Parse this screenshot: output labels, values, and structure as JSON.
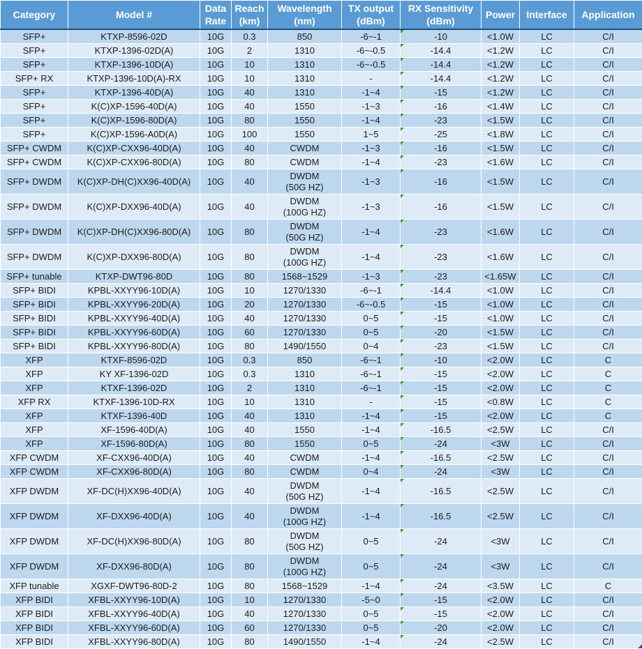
{
  "table": {
    "columns": [
      {
        "key": "category",
        "label": "Category",
        "width": 97
      },
      {
        "key": "model",
        "label": "Model #",
        "width": 189
      },
      {
        "key": "data-rate",
        "label": "Data Rate",
        "width": 45
      },
      {
        "key": "reach",
        "label": "Reach (km)",
        "width": 52
      },
      {
        "key": "wavelength",
        "label": "Wavelength (nm)",
        "width": 106
      },
      {
        "key": "tx-output",
        "label": "TX output (dBm)",
        "width": 84
      },
      {
        "key": "rx-sensitivity",
        "label": "RX Sensitivity (dBm)",
        "width": 116
      },
      {
        "key": "power",
        "label": "Power",
        "width": 55
      },
      {
        "key": "interface",
        "label": "Interface",
        "width": 78
      },
      {
        "key": "application",
        "label": "Application",
        "width": 98
      }
    ],
    "error_indicator_column_index": 6,
    "rows": [
      [
        "SFP+",
        "KTXP-8596-02D",
        "10G",
        "0.3",
        "850",
        "-6~-1",
        "-10",
        "<1.0W",
        "LC",
        "C/I"
      ],
      [
        "SFP+",
        "KTXP-1396-02D(A)",
        "10G",
        "2",
        "1310",
        "-6~-0.5",
        "-14.4",
        "<1.2W",
        "LC",
        "C/I"
      ],
      [
        "SFP+",
        "KTXP-1396-10D(A)",
        "10G",
        "10",
        "1310",
        "-6~-0.5",
        "-14.4",
        "<1.2W",
        "LC",
        "C/I"
      ],
      [
        "SFP+ RX",
        "KTXP-1396-10D(A)-RX",
        "10G",
        "10",
        "1310",
        "-",
        "-14.4",
        "<1.2W",
        "LC",
        "C/I"
      ],
      [
        "SFP+",
        "KTXP-1396-40D(A)",
        "10G",
        "40",
        "1310",
        "-1~4",
        "-15",
        "<1.2W",
        "LC",
        "C/I"
      ],
      [
        "SFP+",
        "K(C)XP-1596-40D(A)",
        "10G",
        "40",
        "1550",
        "-1~3",
        "-16",
        "<1.4W",
        "LC",
        "C/I"
      ],
      [
        "SFP+",
        "K(C)XP-1596-80D(A)",
        "10G",
        "80",
        "1550",
        "-1~4",
        "-23",
        "<1.5W",
        "LC",
        "C/I"
      ],
      [
        "SFP+",
        "K(C)XP-1596-A0D(A)",
        "10G",
        "100",
        "1550",
        "1~5",
        "-25",
        "<1.8W",
        "LC",
        "C/I"
      ],
      [
        "SFP+ CWDM",
        "K(C)XP-CXX96-40D(A)",
        "10G",
        "40",
        "CWDM",
        "-1~3",
        "-16",
        "<1.5W",
        "LC",
        "C/I"
      ],
      [
        "SFP+ CWDM",
        "K(C)XP-CXX96-80D(A)",
        "10G",
        "80",
        "CWDM",
        "-1~4",
        "-23",
        "<1.6W",
        "LC",
        "C/I"
      ],
      [
        "SFP+ DWDM",
        "K(C)XP-DH(C)XX96-40D(A)",
        "10G",
        "40",
        "DWDM\n(50G HZ)",
        "-1~3",
        "-16",
        "<1.5W",
        "LC",
        "C/I"
      ],
      [
        "SFP+ DWDM",
        "K(C)XP-DXX96-40D(A)",
        "10G",
        "40",
        "DWDM\n(100G HZ)",
        "-1~3",
        "-16",
        "<1.5W",
        "LC",
        "C/I"
      ],
      [
        "SFP+ DWDM",
        "K(C)XP-DH(C)XX96-80D(A)",
        "10G",
        "80",
        "DWDM\n(50G HZ)",
        "-1~4",
        "-23",
        "<1.6W",
        "LC",
        "C/I"
      ],
      [
        "SFP+ DWDM",
        "K(C)XP-DXX96-80D(A)",
        "10G",
        "80",
        "DWDM\n(100G HZ)",
        "-1~4",
        "-23",
        "<1.6W",
        "LC",
        "C/I"
      ],
      [
        "SFP+ tunable",
        "KTXP-DWT96-80D",
        "10G",
        "80",
        "1568~1529",
        "-1~3",
        "-23",
        "<1.65W",
        "LC",
        "C/I"
      ],
      [
        "SFP+ BIDI",
        "KPBL-XXYY96-10D(A)",
        "10G",
        "10",
        "1270/1330",
        "-6~-1",
        "-14.4",
        "<1.0W",
        "LC",
        "C/I"
      ],
      [
        "SFP+ BIDI",
        "KPBL-XXYY96-20D(A)",
        "10G",
        "20",
        "1270/1330",
        "-6~-0.5",
        "-15",
        "<1.0W",
        "LC",
        "C/I"
      ],
      [
        "SFP+ BIDI",
        "KPBL-XXYY96-40D(A)",
        "10G",
        "40",
        "1270/1330",
        "0~5",
        "-15",
        "<1.0W",
        "LC",
        "C/I"
      ],
      [
        "SFP+ BIDI",
        "KPBL-XXYY96-60D(A)",
        "10G",
        "60",
        "1270/1330",
        "0~5",
        "-20",
        "<1.5W",
        "LC",
        "C/I"
      ],
      [
        "SFP+ BIDI",
        "KPBL-XXYY96-80D(A)",
        "10G",
        "80",
        "1490/1550",
        "0~4",
        "-23",
        "<1.5W",
        "LC",
        "C/I"
      ],
      [
        "XFP",
        "KTXF-8596-02D",
        "10G",
        "0.3",
        "850",
        "-6~-1",
        "-10",
        "<2.0W",
        "LC",
        "C"
      ],
      [
        "XFP",
        "KY XF-1396-02D",
        "10G",
        "0.3",
        "1310",
        "-6~-1",
        "-15",
        "<2.0W",
        "LC",
        "C"
      ],
      [
        "XFP",
        "KTXF-1396-02D",
        "10G",
        "2",
        "1310",
        "-6~-1",
        "-15",
        "<2.0W",
        "LC",
        "C"
      ],
      [
        "XFP RX",
        "KTXF-1396-10D-RX",
        "10G",
        "10",
        "1310",
        "-",
        "-15",
        "<0.8W",
        "LC",
        "C"
      ],
      [
        "XFP",
        "KTXF-1396-40D",
        "10G",
        "40",
        "1310",
        "-1~4",
        "-15",
        "<2.0W",
        "LC",
        "C"
      ],
      [
        "XFP",
        "XF-1596-40D(A)",
        "10G",
        "40",
        "1550",
        "-1~4",
        "-16.5",
        "<2.5W",
        "LC",
        "C/I"
      ],
      [
        "XFP",
        "XF-1596-80D(A)",
        "10G",
        "80",
        "1550",
        "0~5",
        "-24",
        "<3W",
        "LC",
        "C/I"
      ],
      [
        "XFP CWDM",
        "XF-CXX96-40D(A)",
        "10G",
        "40",
        "CWDM",
        "-1~4",
        "-16.5",
        "<2.5W",
        "LC",
        "C/I"
      ],
      [
        "XFP CWDM",
        "XF-CXX96-80D(A)",
        "10G",
        "80",
        "CWDM",
        "0~4",
        "-24",
        "<3W",
        "LC",
        "C/I"
      ],
      [
        "XFP DWDM",
        "XF-DC(H)XX96-40D(A)",
        "10G",
        "40",
        "DWDM\n(50G HZ)",
        "-1~4",
        "-16.5",
        "<2.5W",
        "LC",
        "C/I"
      ],
      [
        "XFP DWDM",
        "XF-DXX96-40D(A)",
        "10G",
        "40",
        "DWDM\n(100G HZ)",
        "-1~4",
        "-16.5",
        "<2.5W",
        "LC",
        "C/I"
      ],
      [
        "XFP DWDM",
        "XF-DC(H)XX96-80D(A)",
        "10G",
        "80",
        "DWDM\n(50G HZ)",
        "0~5",
        "-24",
        "<3W",
        "LC",
        "C/I"
      ],
      [
        "XFP DWDM",
        "XF-DXX96-80D(A)",
        "10G",
        "80",
        "DWDM\n(100G HZ)",
        "0~5",
        "-24",
        "<3W",
        "LC",
        "C/I"
      ],
      [
        "XFP tunable",
        "XGXF-DWT96-80D-2",
        "10G",
        "80",
        "1568~1529",
        "-1~4",
        "-24",
        "<3.5W",
        "LC",
        "C"
      ],
      [
        "XFP BIDI",
        "XFBL-XXYY96-10D(A)",
        "10G",
        "10",
        "1270/1330",
        "-5~0",
        "-15",
        "<2.0W",
        "LC",
        "C/I"
      ],
      [
        "XFP BIDI",
        "XFBL-XXYY96-40D(A)",
        "10G",
        "40",
        "1270/1330",
        "0~5",
        "-15",
        "<2.0W",
        "LC",
        "C/I"
      ],
      [
        "XFP BIDI",
        "XFBL-XXYY96-60D(A)",
        "10G",
        "60",
        "1270/1330",
        "0~5",
        "-20",
        "<2.0W",
        "LC",
        "C/I"
      ],
      [
        "XFP BIDI",
        "XFBL-XXYY96-80D(A)",
        "10G",
        "80",
        "1490/1550",
        "-1~4",
        "-24",
        "<2.5W",
        "LC",
        "C/I"
      ]
    ]
  },
  "colors": {
    "header_bg": "#5B9BD5",
    "header_border": "#1F4E79",
    "band_dark": "#BDD7EE",
    "band_light": "#DEEBF7",
    "error_indicator_green": "#2E9B2E",
    "corner_marker_blue": "#2F5496"
  },
  "icons": {
    "error_indicator": "error-indicator-triangle-icon",
    "corner_marker": "selection-corner-marker-icon"
  }
}
